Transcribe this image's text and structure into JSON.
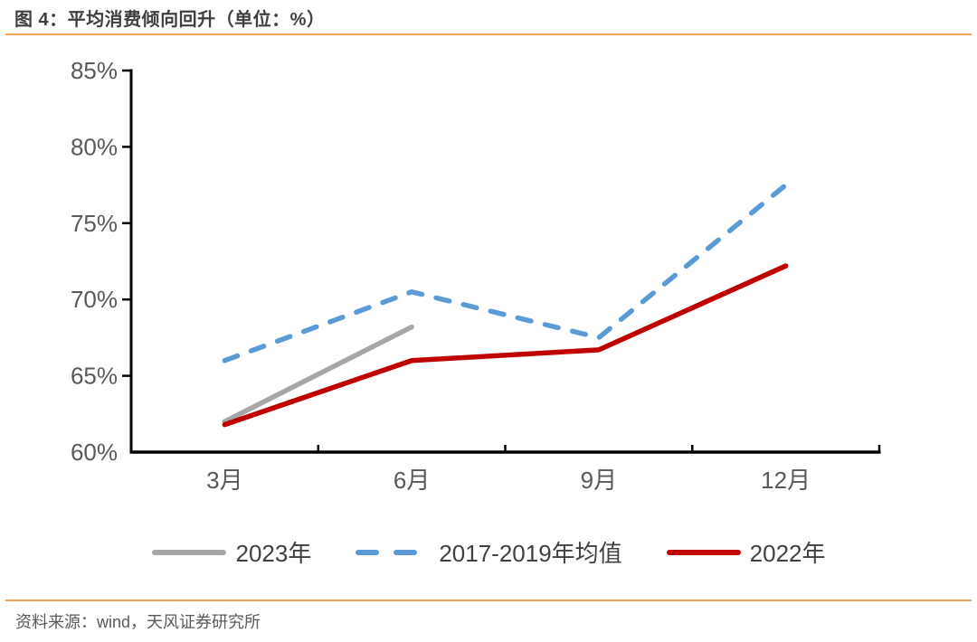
{
  "header": {
    "title": "图 4：平均消费倾向回升（单位：%）"
  },
  "chart_data": {
    "type": "line",
    "title": "平均消费倾向回升",
    "unit": "%",
    "categories": [
      "3月",
      "6月",
      "9月",
      "12月"
    ],
    "series": [
      {
        "name": "2023年",
        "color": "#A6A6A6",
        "style": "solid",
        "values": [
          62.0,
          68.2,
          null,
          null
        ]
      },
      {
        "name": "2017-2019年均值",
        "color": "#5B9BD5",
        "style": "dashed",
        "values": [
          66.0,
          70.5,
          67.5,
          77.5
        ]
      },
      {
        "name": "2022年",
        "color": "#C00000",
        "style": "solid",
        "values": [
          61.8,
          66.0,
          66.7,
          72.2
        ]
      }
    ],
    "y_axis": {
      "min": 60,
      "max": 85,
      "step": 5,
      "tick_labels": [
        "60%",
        "65%",
        "70%",
        "75%",
        "80%",
        "85%"
      ]
    },
    "grid": false,
    "legend_position": "bottom"
  },
  "footer": {
    "source": "资料来源：wind，天风证券研究所"
  },
  "colors": {
    "accent_rule": "#F0A355",
    "axis_line": "#000000",
    "axis_label": "#595959",
    "title_text": "#3F3F3F",
    "legend_text": "#404040",
    "source_text": "#595959"
  }
}
